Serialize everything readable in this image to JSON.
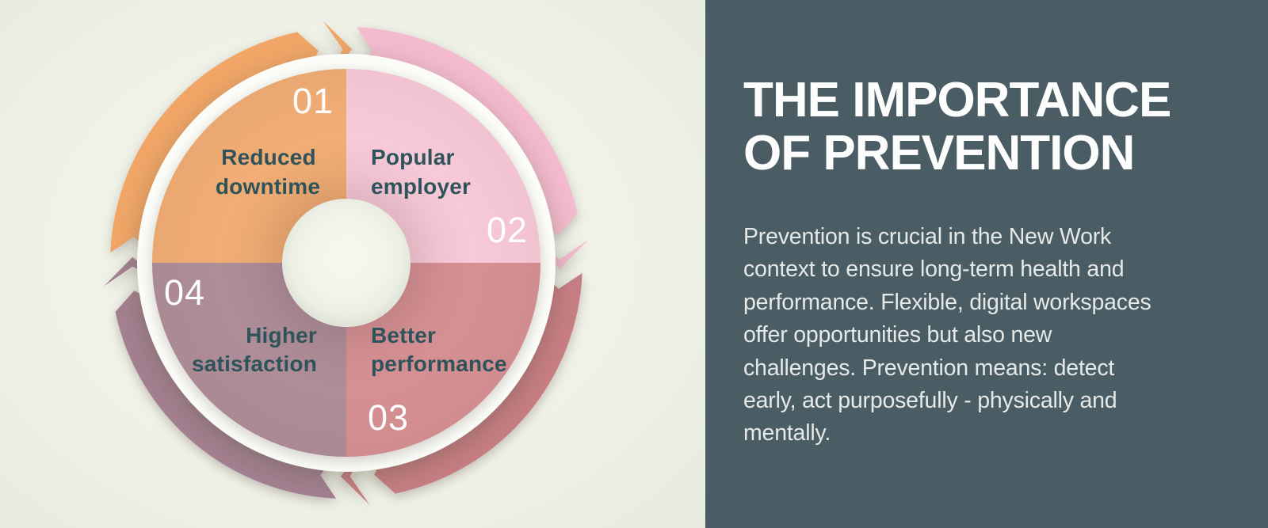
{
  "page": {
    "background": "#eff1e7"
  },
  "diagram": {
    "label_color": "#2e535a",
    "number_color": "#ffffff",
    "plate_color": "#fcfdf9",
    "hole_color": "#f3f5ec",
    "segments": [
      {
        "id": "01",
        "number": "01",
        "label_lines": [
          "Reduced",
          "downtime"
        ],
        "fill": "#f1ad74",
        "arrow_color": "#f1a667"
      },
      {
        "id": "02",
        "number": "02",
        "label_lines": [
          "Popular",
          "employer"
        ],
        "fill": "#f8c9d8",
        "arrow_color": "#f4bbcf"
      },
      {
        "id": "03",
        "number": "03",
        "label_lines": [
          "Better",
          "performance"
        ],
        "fill": "#d69093",
        "arrow_color": "#c87e83"
      },
      {
        "id": "04",
        "number": "04",
        "label_lines": [
          "Higher",
          "satisfaction"
        ],
        "fill": "#ae8d99",
        "arrow_color": "#a48191"
      }
    ]
  },
  "panel": {
    "background": "#4b5d64",
    "heading_color": "#fcfdfc",
    "body_color": "#e5e9e8",
    "heading_line1": "THE IMPORTANCE",
    "heading_line2": "OF PREVENTION",
    "body_lines": [
      "Prevention is crucial in the New Work",
      "context to ensure long-term health and",
      "performance. Flexible, digital workspaces",
      "offer opportunities but also new",
      "challenges. Prevention means: detect",
      "early, act purposefully - physically and",
      "mentally."
    ]
  }
}
